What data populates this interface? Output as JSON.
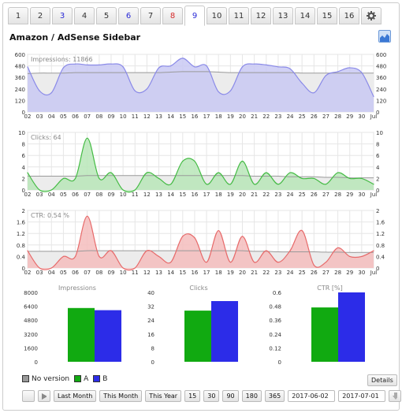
{
  "tabs": [
    {
      "label": "1",
      "color": "#333333"
    },
    {
      "label": "2",
      "color": "#333333"
    },
    {
      "label": "3",
      "color": "#2a2ad6"
    },
    {
      "label": "4",
      "color": "#333333"
    },
    {
      "label": "5",
      "color": "#333333"
    },
    {
      "label": "6",
      "color": "#2a2ad6"
    },
    {
      "label": "7",
      "color": "#333333"
    },
    {
      "label": "8",
      "color": "#d62a2a"
    },
    {
      "label": "9",
      "color": "#2a2ad6",
      "active": true
    },
    {
      "label": "10",
      "color": "#333333"
    },
    {
      "label": "11",
      "color": "#333333"
    },
    {
      "label": "12",
      "color": "#333333"
    },
    {
      "label": "13",
      "color": "#333333"
    },
    {
      "label": "14",
      "color": "#333333"
    },
    {
      "label": "15",
      "color": "#333333"
    },
    {
      "label": "16",
      "color": "#333333"
    }
  ],
  "gear_icon": "gear-icon",
  "title": "Amazon / AdSense Sidebar",
  "chart_icon": "area-chart-icon",
  "x_labels": [
    "02",
    "03",
    "04",
    "05",
    "06",
    "07",
    "08",
    "09",
    "10",
    "11",
    "12",
    "13",
    "14",
    "15",
    "16",
    "17",
    "18",
    "19",
    "20",
    "21",
    "22",
    "23",
    "24",
    "25",
    "26",
    "27",
    "28",
    "29",
    "30",
    "Jul"
  ],
  "chart_data": [
    {
      "type": "area",
      "title": "Impressions: 11866",
      "ylim": [
        0,
        600
      ],
      "yticks": [
        600,
        480,
        360,
        240,
        120,
        0
      ],
      "color": "#8a8ae8",
      "fill": "#c9c9f3",
      "values": [
        470,
        220,
        200,
        460,
        500,
        490,
        490,
        500,
        470,
        220,
        240,
        460,
        480,
        560,
        470,
        480,
        210,
        220,
        470,
        500,
        490,
        470,
        450,
        300,
        200,
        380,
        420,
        460,
        410,
        160
      ],
      "baseline": [
        400,
        405,
        405,
        405,
        410,
        410,
        410,
        410,
        410,
        410,
        410,
        410,
        415,
        420,
        420,
        420,
        415,
        410,
        410,
        410,
        410,
        410,
        410,
        405,
        405,
        405,
        405,
        405,
        405,
        405
      ]
    },
    {
      "type": "area",
      "title": "Clicks: 64",
      "ylim": [
        0,
        10
      ],
      "yticks": [
        10,
        8,
        6,
        4,
        2,
        0
      ],
      "color": "#44bb44",
      "fill": "#b9e6b9",
      "values": [
        3,
        0,
        0,
        2,
        2,
        9,
        2,
        3,
        0,
        0,
        3,
        2,
        1,
        5,
        5,
        1,
        3,
        1,
        5,
        1,
        3,
        1,
        3,
        2,
        2,
        1,
        3,
        2,
        2,
        1
      ],
      "baseline": [
        2.4,
        2.4,
        2.4,
        2.4,
        2.4,
        2.5,
        2.5,
        2.5,
        2.5,
        2.5,
        2.5,
        2.5,
        2.5,
        2.5,
        2.5,
        2.5,
        2.5,
        2.5,
        2.5,
        2.4,
        2.4,
        2.4,
        2.3,
        2.3,
        2.3,
        2.2,
        2.2,
        2.1,
        2.1,
        2.1
      ]
    },
    {
      "type": "area",
      "title": "CTR: 0.54 %",
      "ylim": [
        0,
        2
      ],
      "yticks": [
        2,
        1.6,
        1.2,
        0.8,
        0.4,
        0
      ],
      "color": "#e76a6a",
      "fill": "#f5bdbd",
      "values": [
        0.6,
        0,
        0,
        0.4,
        0.4,
        1.8,
        0.4,
        0.6,
        0,
        0,
        0.6,
        0.4,
        0.2,
        1.1,
        1.05,
        0.2,
        1.3,
        0.2,
        1.1,
        0.2,
        0.6,
        0.2,
        0.6,
        1.3,
        0.1,
        0.2,
        0.7,
        0.4,
        0.4,
        0.6
      ],
      "baseline": [
        0.58,
        0.58,
        0.58,
        0.58,
        0.58,
        0.6,
        0.6,
        0.6,
        0.6,
        0.6,
        0.6,
        0.6,
        0.6,
        0.6,
        0.6,
        0.6,
        0.6,
        0.6,
        0.6,
        0.58,
        0.58,
        0.56,
        0.56,
        0.56,
        0.56,
        0.55,
        0.55,
        0.54,
        0.54,
        0.54
      ]
    },
    {
      "type": "bar",
      "title": "Impressions",
      "ylim": [
        0,
        8000
      ],
      "yticks": [
        "8000",
        "6400",
        "4800",
        "3200",
        "1600",
        "0"
      ],
      "series": [
        {
          "name": "A",
          "color": "#11aa11",
          "value": 6200
        },
        {
          "name": "B",
          "color": "#2c2ce8",
          "value": 5950
        }
      ]
    },
    {
      "type": "bar",
      "title": "Clicks",
      "ylim": [
        0,
        40
      ],
      "yticks": [
        "40",
        "32",
        "24",
        "16",
        "8",
        "0"
      ],
      "series": [
        {
          "name": "A",
          "color": "#11aa11",
          "value": 29.5
        },
        {
          "name": "B",
          "color": "#2c2ce8",
          "value": 35
        }
      ]
    },
    {
      "type": "bar",
      "title": "CTR [%]",
      "ylim": [
        0,
        0.6
      ],
      "yticks": [
        "0.6",
        "0.48",
        "0.36",
        "0.24",
        "0.12",
        "0"
      ],
      "series": [
        {
          "name": "A",
          "color": "#11aa11",
          "value": 0.47
        },
        {
          "name": "B",
          "color": "#2c2ce8",
          "value": 0.6
        }
      ]
    }
  ],
  "legend": [
    {
      "label": "No version",
      "color": "#999999"
    },
    {
      "label": "A",
      "color": "#11aa11"
    },
    {
      "label": "B",
      "color": "#2c2ce8"
    }
  ],
  "details_label": "Details",
  "controls": {
    "buttons": [
      "Last Month",
      "This Month",
      "This Year",
      "15",
      "30",
      "90",
      "180",
      "365"
    ],
    "date_from": "2017-06-02",
    "date_to": "2017-07-01"
  }
}
